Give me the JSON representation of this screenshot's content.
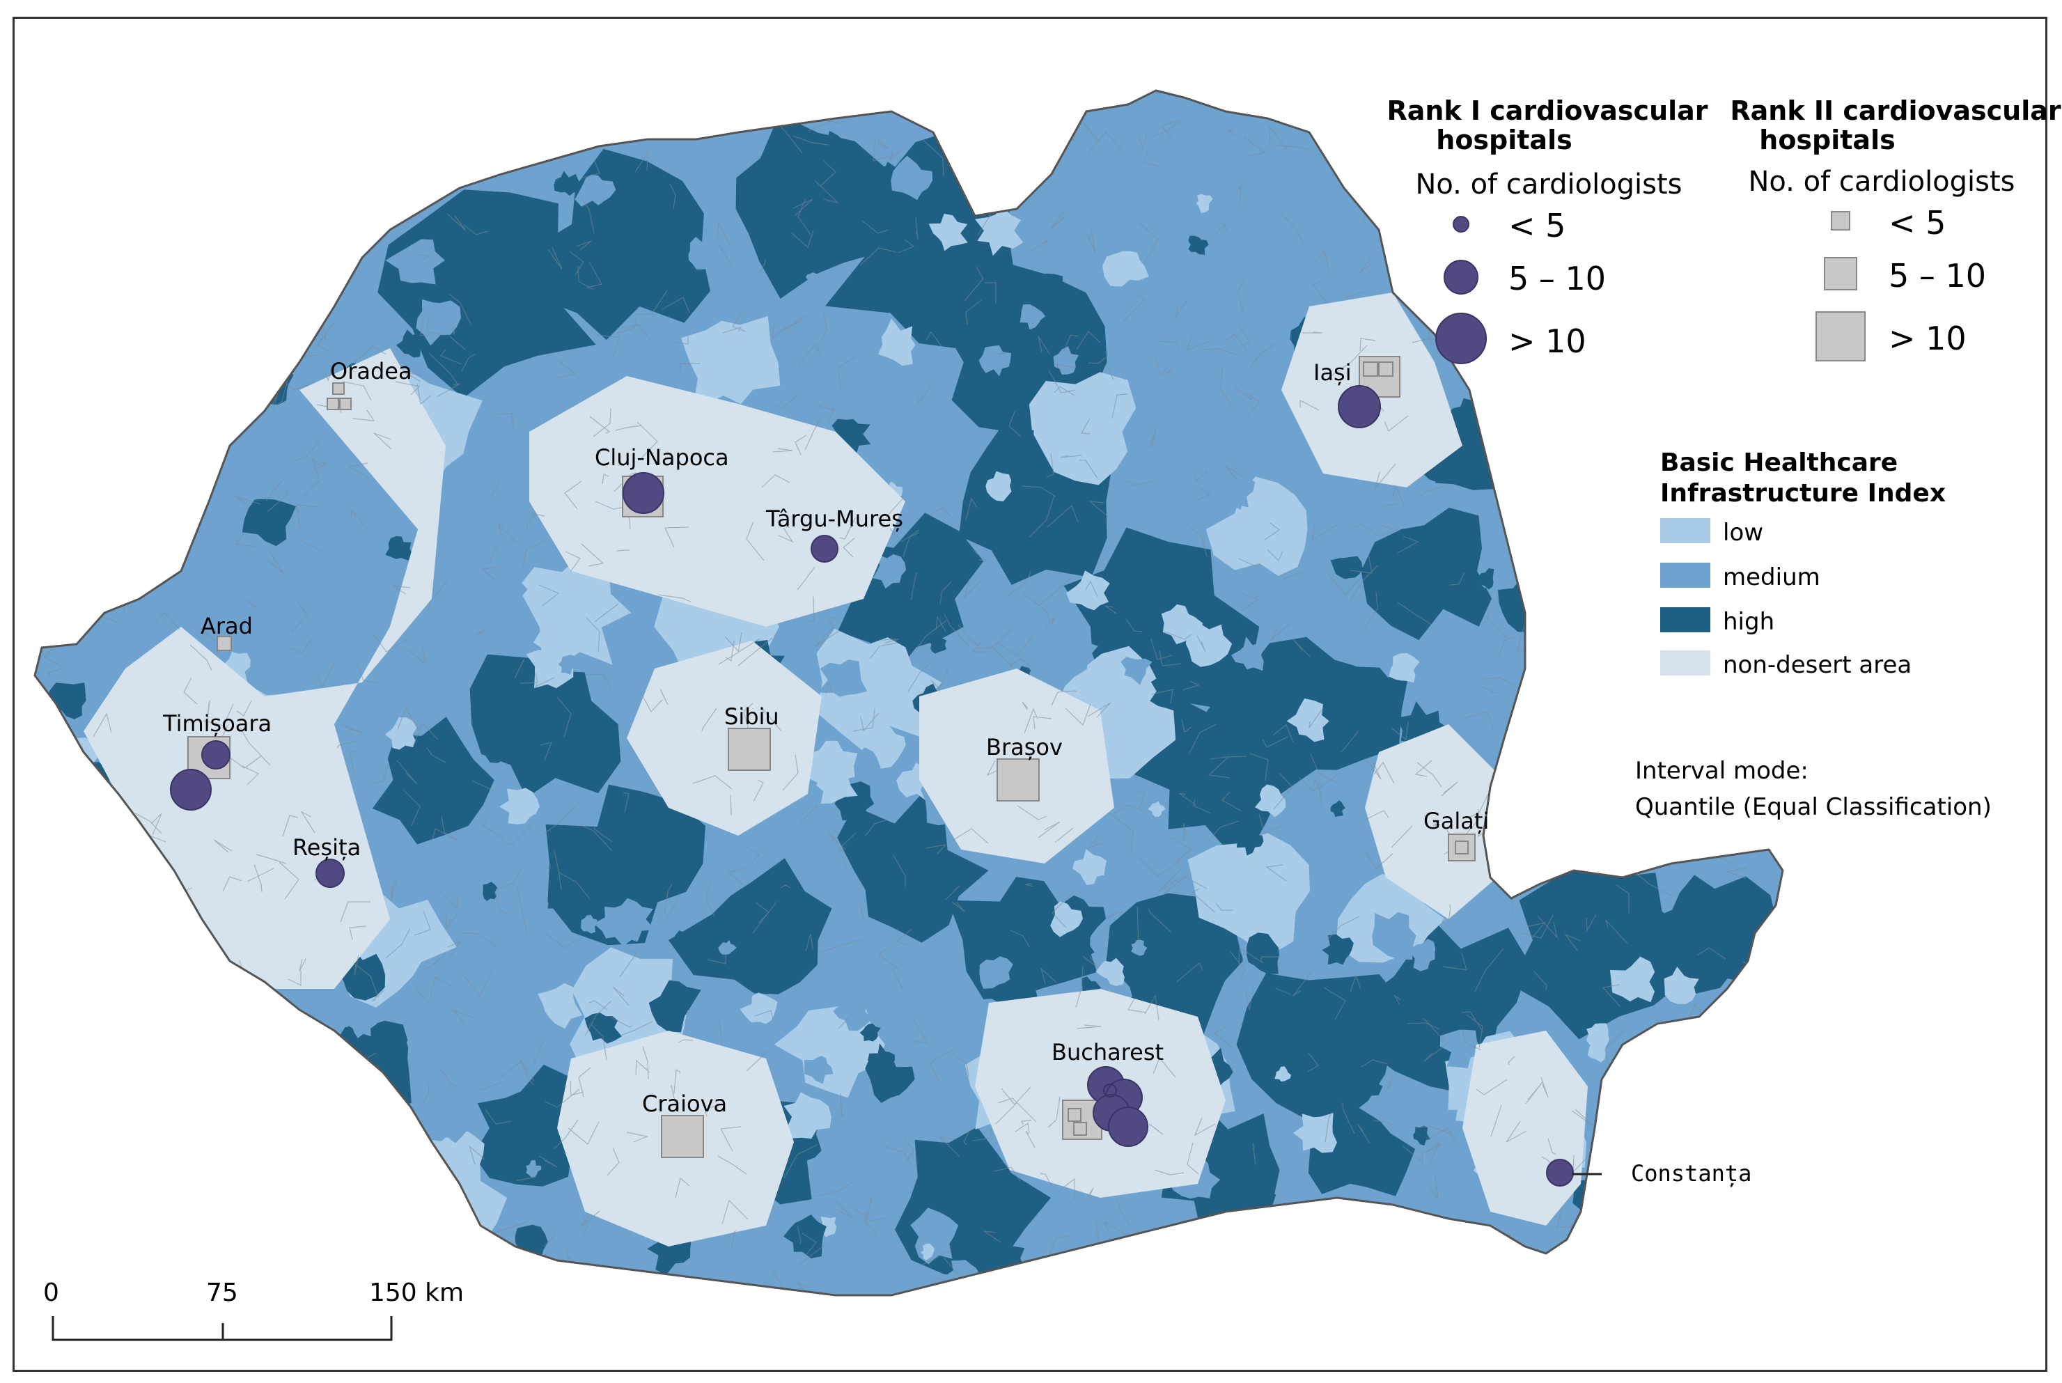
{
  "rank1_legend": {
    "title": "Rank I cardiovascular hospitals",
    "title_line1": "Rank I cardiovascular",
    "title_line2": "hospitals",
    "subtitle": "No. of cardiologists",
    "classes": [
      {
        "label": "< 5"
      },
      {
        "label": "5 – 10"
      },
      {
        "label": "> 10"
      }
    ],
    "color": "#514a82"
  },
  "rank2_legend": {
    "title": "Rank II cardiovascular hospitals",
    "title_line1": "Rank II cardiovascular",
    "title_line2": "hospitals",
    "subtitle": "No. of cardiologists",
    "classes": [
      {
        "label": "< 5"
      },
      {
        "label": "5 – 10"
      },
      {
        "label": "> 10"
      }
    ],
    "color": "#c8c8c8"
  },
  "index_legend": {
    "title_line1": "Basic Healthcare",
    "title_line2": "Infrastructure Index",
    "classes": [
      {
        "label": "low",
        "color": "#a9cce8"
      },
      {
        "label": "medium",
        "color": "#6fa3cf"
      },
      {
        "label": "high",
        "color": "#1f5f84"
      },
      {
        "label": "non-desert area",
        "color": "#d6e3ec"
      }
    ]
  },
  "interval_note": {
    "line1": "Interval mode:",
    "line2": "Quantile (Equal Classification)"
  },
  "scale_bar": {
    "labels": [
      "0",
      "75",
      "150 km"
    ]
  },
  "cities": [
    {
      "name": "Oradea"
    },
    {
      "name": "Cluj-Napoca"
    },
    {
      "name": "Târgu-Mureș"
    },
    {
      "name": "Arad"
    },
    {
      "name": "Timișoara"
    },
    {
      "name": "Sibiu"
    },
    {
      "name": "Brașov"
    },
    {
      "name": "Iași"
    },
    {
      "name": "Reșița"
    },
    {
      "name": "Galați"
    },
    {
      "name": "Craiova"
    },
    {
      "name": "Bucharest"
    },
    {
      "name": "Constanța"
    }
  ],
  "map_colors": {
    "low": "#a9cce8",
    "medium": "#6fa3cf",
    "high": "#1f5f84",
    "non_desert": "#d6e3ec",
    "border": "#7a8a99"
  }
}
